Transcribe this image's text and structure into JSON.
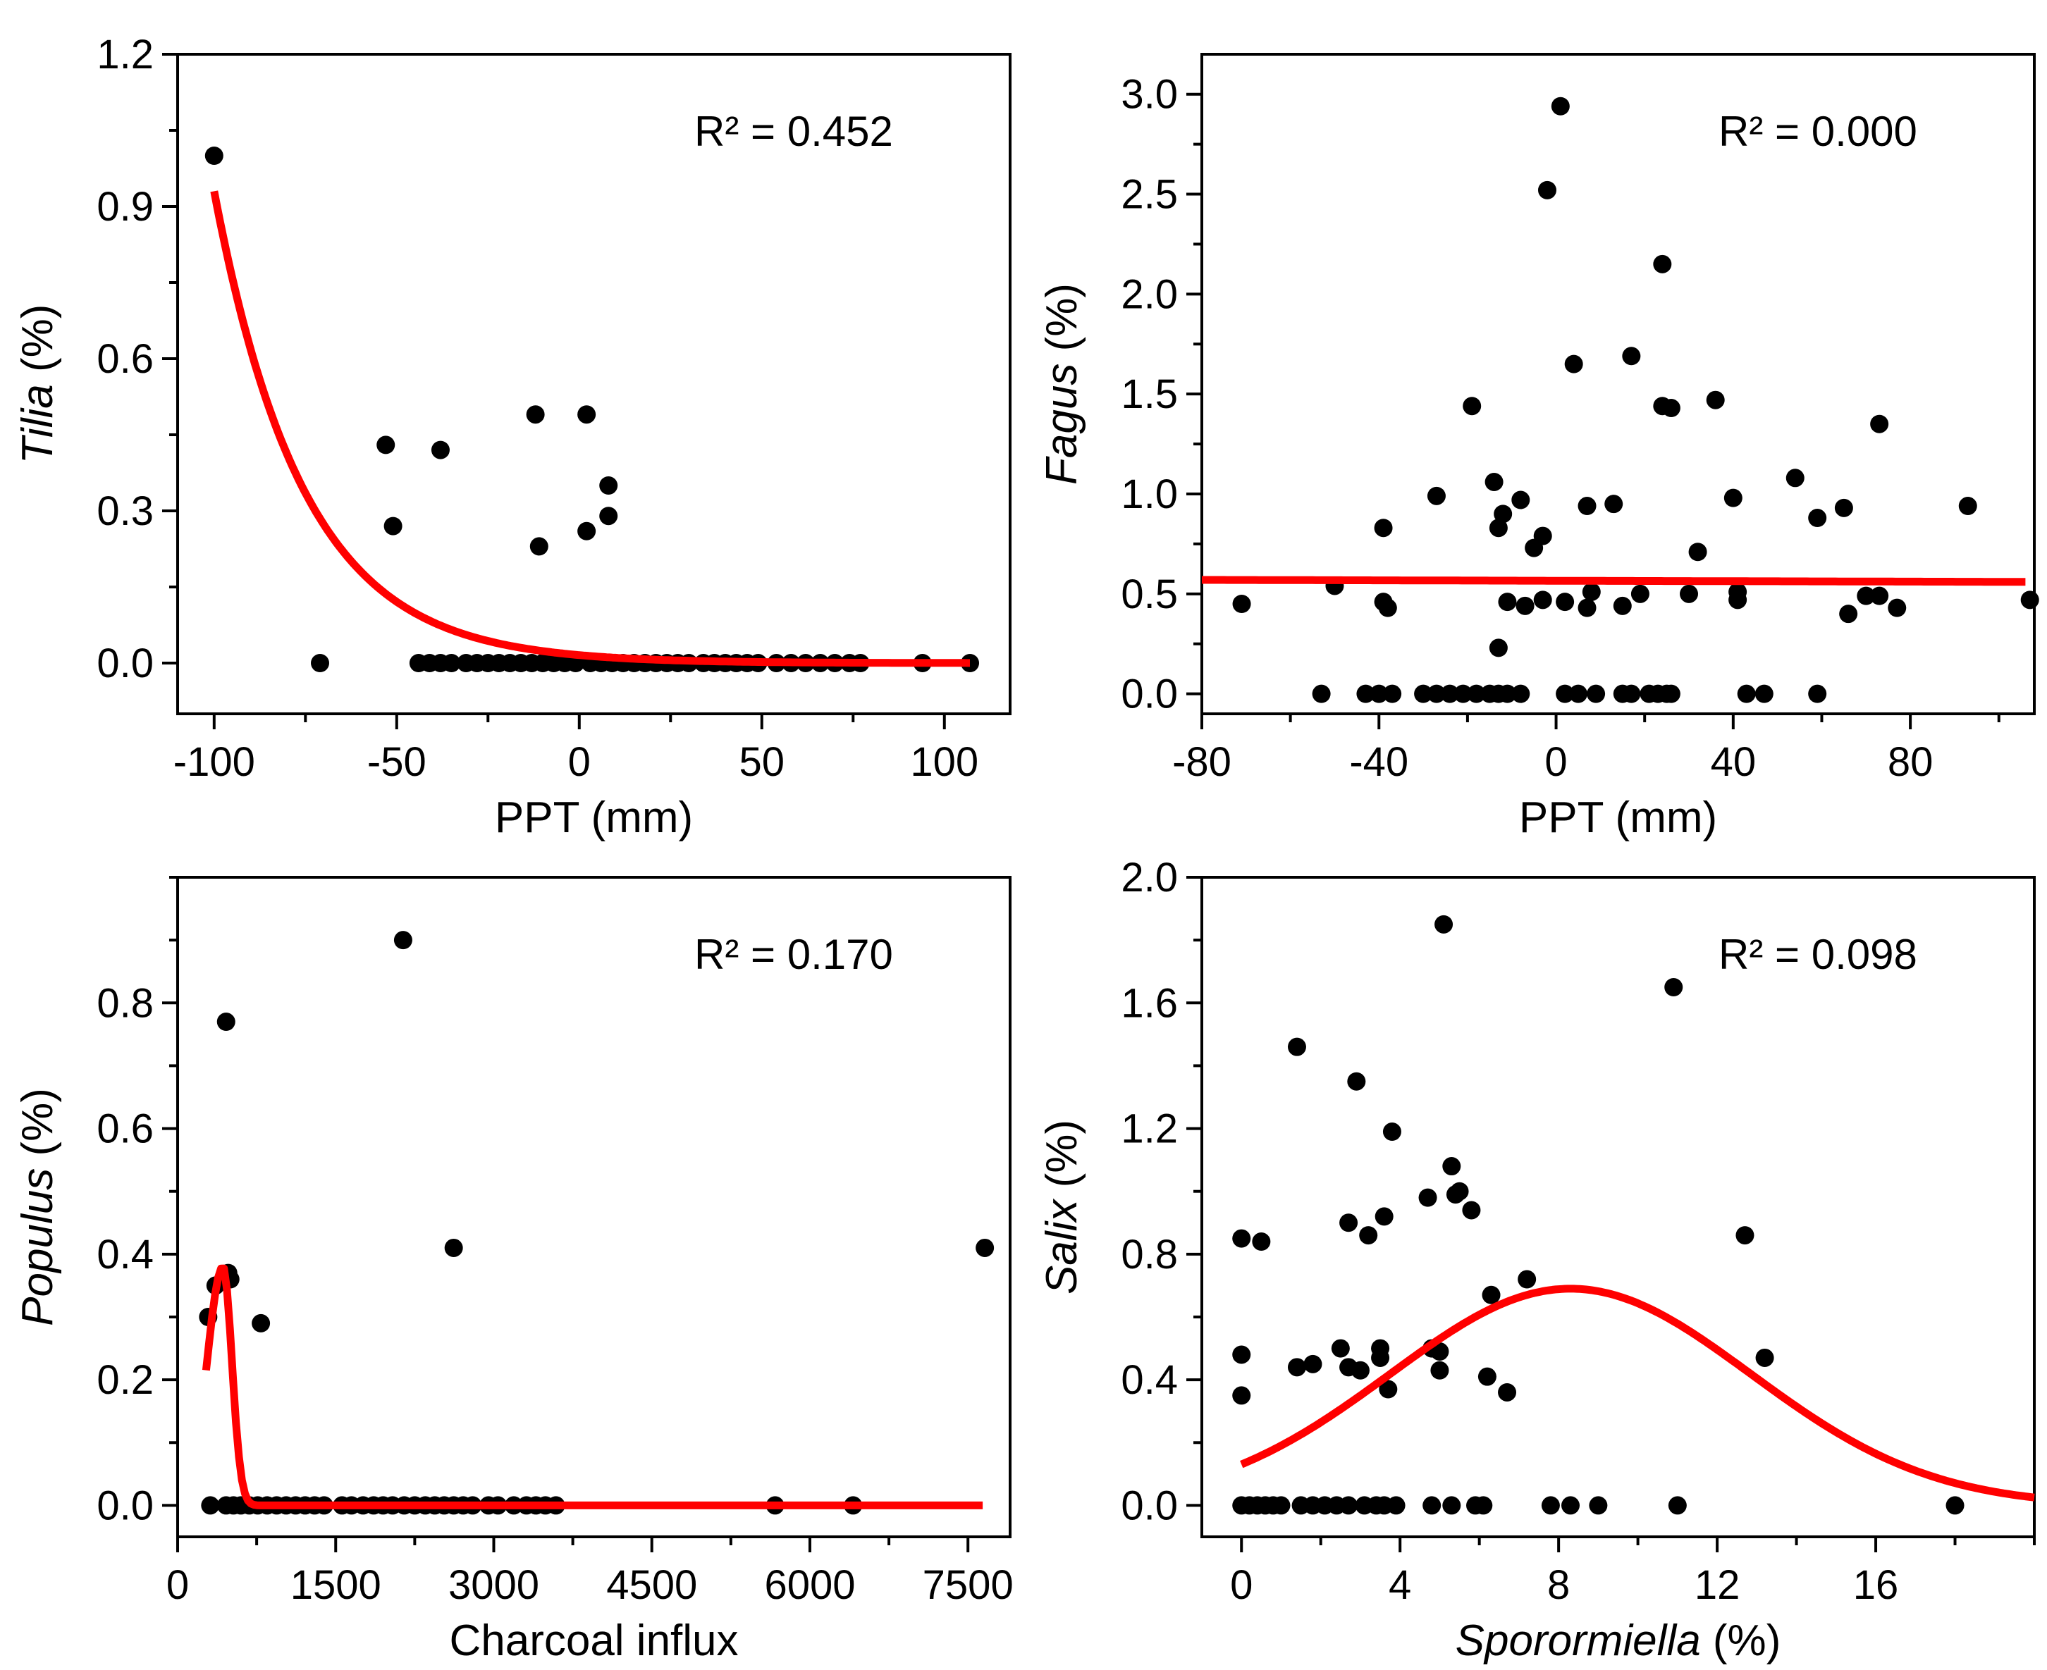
{
  "figure": {
    "panels": [
      {
        "id": "a",
        "r2_text": "R² = 0.452",
        "xlabel": "PPT (mm)",
        "ylabel": {
          "italic": "Tilia",
          "plain": " (%)"
        }
      },
      {
        "id": "b",
        "r2_text": "R² = 0.000",
        "xlabel": "PPT (mm)",
        "ylabel": {
          "italic": "Fagus",
          "plain": " (%)"
        }
      },
      {
        "id": "c",
        "r2_text": "R² = 0.170",
        "xlabel": "Charcoal influx",
        "ylabel": {
          "italic": "Populus",
          "plain": " (%)"
        }
      },
      {
        "id": "d",
        "r2_text": "R² = 0.098",
        "xlabel": {
          "italic": "Sporormiella",
          "plain": " (%)"
        },
        "ylabel": {
          "italic": "Salix",
          "plain": " (%)"
        }
      }
    ],
    "colors": {
      "points": "#000000",
      "fit": "#ff0000",
      "axes": "#000000"
    }
  },
  "chart_data": [
    {
      "type": "scatter",
      "xlabel": "PPT (mm)",
      "ylabel": "Tilia (%)",
      "xlim": [
        -110,
        118
      ],
      "ylim": [
        -0.1,
        1.2
      ],
      "xticks": [
        -100,
        -50,
        0,
        50,
        100
      ],
      "yticks": [
        0.0,
        0.3,
        0.6,
        0.9,
        1.2
      ],
      "ytick_labels": [
        "0.0",
        "0.3",
        "0.6",
        "0.9",
        "1.2"
      ],
      "xtick_labels": [
        "-100",
        "-50",
        "0",
        "50",
        "100"
      ],
      "annotation": "R² = 0.452",
      "points": [
        [
          -100,
          1.0
        ],
        [
          -53,
          0.43
        ],
        [
          -51,
          0.27
        ],
        [
          -38,
          0.42
        ],
        [
          -12,
          0.49
        ],
        [
          -11,
          0.23
        ],
        [
          2,
          0.26
        ],
        [
          2,
          0.49
        ],
        [
          8,
          0.35
        ],
        [
          8,
          0.29
        ],
        [
          -71,
          0
        ],
        [
          -44,
          0
        ],
        [
          -41,
          0
        ],
        [
          -38,
          0
        ],
        [
          -35,
          0
        ],
        [
          -31,
          0
        ],
        [
          -28,
          0
        ],
        [
          -25,
          0
        ],
        [
          -22,
          0
        ],
        [
          -19,
          0
        ],
        [
          -16,
          0
        ],
        [
          -13,
          0
        ],
        [
          -10,
          0
        ],
        [
          -7,
          0
        ],
        [
          -4,
          0
        ],
        [
          -1,
          0
        ],
        [
          3,
          0
        ],
        [
          6,
          0
        ],
        [
          9,
          0
        ],
        [
          12,
          0
        ],
        [
          15,
          0
        ],
        [
          18,
          0
        ],
        [
          21,
          0
        ],
        [
          24,
          0
        ],
        [
          27,
          0
        ],
        [
          30,
          0
        ],
        [
          34,
          0
        ],
        [
          37,
          0
        ],
        [
          40,
          0
        ],
        [
          43,
          0
        ],
        [
          46,
          0
        ],
        [
          49,
          0
        ],
        [
          54,
          0
        ],
        [
          58,
          0
        ],
        [
          62,
          0
        ],
        [
          66,
          0
        ],
        [
          70,
          0
        ],
        [
          74,
          0
        ],
        [
          77,
          0
        ],
        [
          94,
          0
        ],
        [
          107,
          0
        ]
      ],
      "fit": {
        "model": "exponential",
        "x_range": [
          -100,
          107
        ],
        "y_at_start": 0.93,
        "y_at_end": 0.0
      }
    },
    {
      "type": "scatter",
      "xlabel": "PPT (mm)",
      "ylabel": "Fagus (%)",
      "xlim": [
        -80,
        108
      ],
      "ylim": [
        -0.1,
        3.2
      ],
      "xticks": [
        -80,
        -40,
        0,
        40,
        80
      ],
      "yticks": [
        0.0,
        0.5,
        1.0,
        1.5,
        2.0,
        2.5,
        3.0
      ],
      "ytick_labels": [
        "0.0",
        "0.5",
        "1.0",
        "1.5",
        "2.0",
        "2.5",
        "3.0"
      ],
      "xtick_labels": [
        "-80",
        "-40",
        "0",
        "40",
        "80"
      ],
      "annotation": "R² = 0.000",
      "points": [
        [
          -71,
          0.45
        ],
        [
          -50,
          0.54
        ],
        [
          -39,
          0.83
        ],
        [
          -39,
          0.46
        ],
        [
          -38,
          0.43
        ],
        [
          -27,
          0.99
        ],
        [
          -19,
          1.44
        ],
        [
          -14,
          1.06
        ],
        [
          -13,
          0.83
        ],
        [
          -12,
          0.9
        ],
        [
          -11,
          0.46
        ],
        [
          -13,
          0.23
        ],
        [
          -8,
          0.97
        ],
        [
          -7,
          0.44
        ],
        [
          -5,
          0.73
        ],
        [
          -3,
          0.47
        ],
        [
          -3,
          0.79
        ],
        [
          1,
          2.94
        ],
        [
          -2,
          2.52
        ],
        [
          2,
          0.46
        ],
        [
          4,
          1.65
        ],
        [
          7,
          0.94
        ],
        [
          7,
          0.43
        ],
        [
          8,
          0.51
        ],
        [
          13,
          0.95
        ],
        [
          15,
          0.44
        ],
        [
          17,
          1.69
        ],
        [
          19,
          0.5
        ],
        [
          24,
          1.44
        ],
        [
          24,
          2.15
        ],
        [
          26,
          1.43
        ],
        [
          30,
          0.5
        ],
        [
          32,
          0.71
        ],
        [
          36,
          1.47
        ],
        [
          40,
          0.98
        ],
        [
          41,
          0.51
        ],
        [
          41,
          0.47
        ],
        [
          54,
          1.08
        ],
        [
          59,
          0.88
        ],
        [
          65,
          0.93
        ],
        [
          66,
          0.4
        ],
        [
          70,
          0.49
        ],
        [
          73,
          1.35
        ],
        [
          73,
          0.49
        ],
        [
          77,
          0.43
        ],
        [
          93,
          0.94
        ],
        [
          107,
          0.47
        ],
        [
          -53,
          0
        ],
        [
          -43,
          0
        ],
        [
          -40,
          0
        ],
        [
          -37,
          0
        ],
        [
          -30,
          0
        ],
        [
          -27,
          0
        ],
        [
          -24,
          0
        ],
        [
          -21,
          0
        ],
        [
          -18,
          0
        ],
        [
          -15,
          0
        ],
        [
          -13,
          0
        ],
        [
          -11,
          0
        ],
        [
          -8,
          0
        ],
        [
          2,
          0
        ],
        [
          5,
          0
        ],
        [
          9,
          0
        ],
        [
          15,
          0
        ],
        [
          17,
          0
        ],
        [
          21,
          0
        ],
        [
          23,
          0
        ],
        [
          25,
          0
        ],
        [
          26,
          0
        ],
        [
          43,
          0
        ],
        [
          47,
          0
        ],
        [
          59,
          0
        ]
      ],
      "fit": {
        "model": "linear",
        "x_range": [
          -80,
          106
        ],
        "y_at_start": 0.57,
        "y_at_end": 0.56
      }
    },
    {
      "type": "scatter",
      "xlabel": "Charcoal influx",
      "ylabel": "Populus (%)",
      "xlim": [
        0,
        7900
      ],
      "ylim": [
        -0.05,
        1.0
      ],
      "xticks": [
        0,
        1500,
        3000,
        4500,
        6000,
        7500
      ],
      "yticks": [
        0.0,
        0.2,
        0.4,
        0.6,
        0.8
      ],
      "ytick_labels": [
        "0.0",
        "0.2",
        "0.4",
        "0.6",
        "0.8"
      ],
      "xtick_labels": [
        "0",
        "1500",
        "3000",
        "4500",
        "6000",
        "7500"
      ],
      "annotation": "R² = 0.170",
      "points": [
        [
          290,
          0.3
        ],
        [
          360,
          0.35
        ],
        [
          460,
          0.77
        ],
        [
          480,
          0.37
        ],
        [
          500,
          0.36
        ],
        [
          790,
          0.29
        ],
        [
          2140,
          0.9
        ],
        [
          2620,
          0.41
        ],
        [
          7660,
          0.41
        ],
        [
          310,
          0
        ],
        [
          460,
          0
        ],
        [
          530,
          0
        ],
        [
          600,
          0
        ],
        [
          680,
          0
        ],
        [
          760,
          0
        ],
        [
          850,
          0
        ],
        [
          940,
          0
        ],
        [
          1030,
          0
        ],
        [
          1120,
          0
        ],
        [
          1210,
          0
        ],
        [
          1300,
          0
        ],
        [
          1390,
          0
        ],
        [
          1560,
          0
        ],
        [
          1650,
          0
        ],
        [
          1760,
          0
        ],
        [
          1860,
          0
        ],
        [
          1950,
          0
        ],
        [
          2040,
          0
        ],
        [
          2150,
          0
        ],
        [
          2250,
          0
        ],
        [
          2350,
          0
        ],
        [
          2440,
          0
        ],
        [
          2530,
          0
        ],
        [
          2620,
          0
        ],
        [
          2710,
          0
        ],
        [
          2800,
          0
        ],
        [
          2950,
          0
        ],
        [
          3040,
          0
        ],
        [
          3190,
          0
        ],
        [
          3310,
          0
        ],
        [
          3400,
          0
        ],
        [
          3490,
          0
        ],
        [
          3590,
          0
        ],
        [
          5670,
          0
        ],
        [
          6410,
          0
        ]
      ],
      "fit": {
        "model": "peaked",
        "x_range": [
          270,
          7640
        ],
        "y_peak": 0.38,
        "x_peak": 430
      }
    },
    {
      "type": "scatter",
      "xlabel": "Sporormiella (%)",
      "ylabel": "Salix (%)",
      "xlim": [
        -1,
        20
      ],
      "ylim": [
        -0.1,
        2.0
      ],
      "xticks": [
        0,
        4,
        8,
        12,
        16
      ],
      "yticks": [
        0.0,
        0.4,
        0.8,
        1.2,
        1.6,
        2.0
      ],
      "ytick_labels": [
        "0.0",
        "0.4",
        "0.8",
        "1.2",
        "1.6",
        "2.0"
      ],
      "xtick_labels": [
        "0",
        "4",
        "8",
        "12",
        "16"
      ],
      "annotation": "R² = 0.098",
      "points": [
        [
          0,
          0.85
        ],
        [
          0,
          0.48
        ],
        [
          0,
          0.35
        ],
        [
          0.5,
          0.84
        ],
        [
          1.4,
          1.46
        ],
        [
          1.4,
          0.44
        ],
        [
          1.8,
          0.45
        ],
        [
          2.5,
          0.5
        ],
        [
          2.7,
          0.9
        ],
        [
          2.7,
          0.44
        ],
        [
          2.9,
          1.35
        ],
        [
          3.0,
          0.43
        ],
        [
          3.2,
          0.86
        ],
        [
          3.5,
          0.5
        ],
        [
          3.5,
          0.47
        ],
        [
          3.6,
          0.92
        ],
        [
          3.7,
          0.37
        ],
        [
          3.8,
          1.19
        ],
        [
          4.7,
          0.98
        ],
        [
          4.8,
          0.5
        ],
        [
          5.0,
          0.43
        ],
        [
          5.0,
          0.49
        ],
        [
          5.1,
          1.85
        ],
        [
          5.3,
          1.08
        ],
        [
          5.4,
          0.99
        ],
        [
          5.5,
          1.0
        ],
        [
          5.8,
          0.94
        ],
        [
          6.2,
          0.41
        ],
        [
          6.3,
          0.67
        ],
        [
          6.7,
          0.36
        ],
        [
          7.2,
          0.72
        ],
        [
          10.9,
          1.65
        ],
        [
          12.7,
          0.86
        ],
        [
          13.2,
          0.47
        ],
        [
          0,
          0
        ],
        [
          0.2,
          0
        ],
        [
          0.4,
          0
        ],
        [
          0.6,
          0
        ],
        [
          0.8,
          0
        ],
        [
          1.0,
          0
        ],
        [
          1.5,
          0
        ],
        [
          1.8,
          0
        ],
        [
          2.1,
          0
        ],
        [
          2.4,
          0
        ],
        [
          2.7,
          0
        ],
        [
          3.1,
          0
        ],
        [
          3.4,
          0
        ],
        [
          3.6,
          0
        ],
        [
          3.9,
          0
        ],
        [
          4.8,
          0
        ],
        [
          5.3,
          0
        ],
        [
          5.9,
          0
        ],
        [
          6.1,
          0
        ],
        [
          7.8,
          0
        ],
        [
          8.3,
          0
        ],
        [
          9.0,
          0
        ],
        [
          11.0,
          0
        ],
        [
          18.0,
          0
        ]
      ],
      "fit": {
        "model": "gaussian",
        "x_range": [
          0,
          20
        ],
        "y_peak": 0.69,
        "x_peak": 8.3
      }
    }
  ]
}
